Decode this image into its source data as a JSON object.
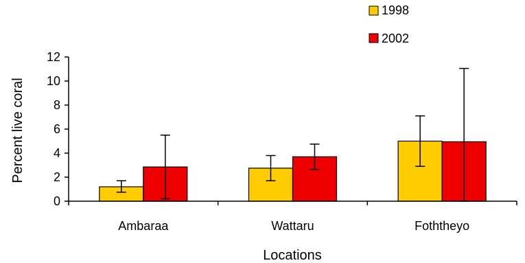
{
  "chart_data": {
    "type": "bar",
    "categories": [
      "Ambaraa",
      "Wattaru",
      "Foththeyo"
    ],
    "series": [
      {
        "name": "1998",
        "color": "#FFCC00",
        "values": [
          1.2,
          2.75,
          5.0
        ],
        "error_low": [
          0.75,
          1.7,
          2.9
        ],
        "error_high": [
          1.7,
          3.8,
          7.1
        ]
      },
      {
        "name": "2002",
        "color": "#EE0000",
        "values": [
          2.85,
          3.7,
          4.95
        ],
        "error_low": [
          0.2,
          2.65,
          0
        ],
        "error_high": [
          5.5,
          4.75,
          11.05
        ]
      }
    ],
    "xlabel": "Locations",
    "ylabel": "Percent live coral",
    "ylim": [
      0,
      12
    ],
    "yticks": [
      "0",
      "2",
      "4",
      "6",
      "8",
      "10",
      "12"
    ],
    "grid": false,
    "legend": "top-right"
  }
}
